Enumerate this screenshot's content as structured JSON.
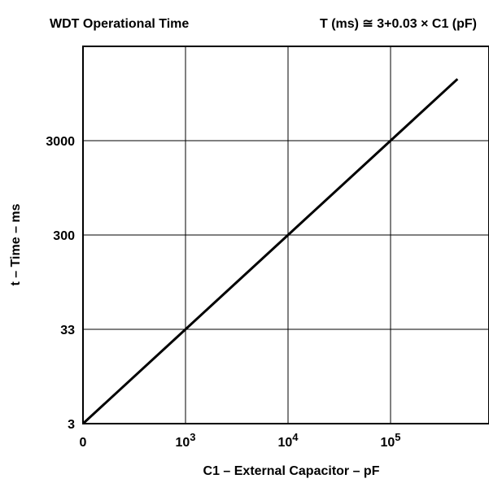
{
  "chart_data": {
    "type": "line",
    "title": "WDT Operational Time",
    "subtitle": "T (ms) ≅ 3+0.03 × C1 (pF)",
    "xlabel": "C1 – External Capacitor – pF",
    "ylabel": "t – Time – ms",
    "x_tick_labels": [
      {
        "value": 0,
        "base": "0",
        "exp": ""
      },
      {
        "value": 1000,
        "base": "10",
        "exp": "3"
      },
      {
        "value": 10000,
        "base": "10",
        "exp": "4"
      },
      {
        "value": 100000,
        "base": "10",
        "exp": "5"
      }
    ],
    "y_tick_labels": [
      {
        "value": 3,
        "label": "3"
      },
      {
        "value": 33,
        "label": "33"
      },
      {
        "value": 300,
        "label": "300"
      },
      {
        "value": 3000,
        "label": "3000"
      }
    ],
    "grid": true,
    "series": [
      {
        "points": [
          {
            "x": 0,
            "y": 3
          },
          {
            "x": 1000,
            "y": 33
          },
          {
            "x": 10000,
            "y": 300
          },
          {
            "x": 100000,
            "y": 3000
          },
          {
            "x": 450000,
            "y": 13500
          }
        ],
        "color": "#000000"
      }
    ]
  }
}
